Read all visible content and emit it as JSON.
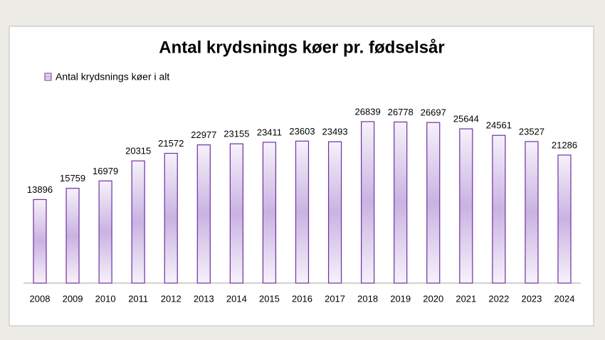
{
  "chart_data": {
    "type": "bar",
    "title": "Antal krydsnings køer pr. fødselsår",
    "categories": [
      "2008",
      "2009",
      "2010",
      "2011",
      "2012",
      "2013",
      "2014",
      "2015",
      "2016",
      "2017",
      "2018",
      "2019",
      "2020",
      "2021",
      "2022",
      "2023",
      "2024"
    ],
    "series": [
      {
        "name": "Antal krydsnings køer i alt",
        "color": "#7030a0",
        "values": [
          13896,
          15759,
          16979,
          20315,
          21572,
          22977,
          23155,
          23411,
          23603,
          23493,
          26839,
          26778,
          26697,
          25644,
          24561,
          23527,
          21286
        ]
      }
    ]
  }
}
